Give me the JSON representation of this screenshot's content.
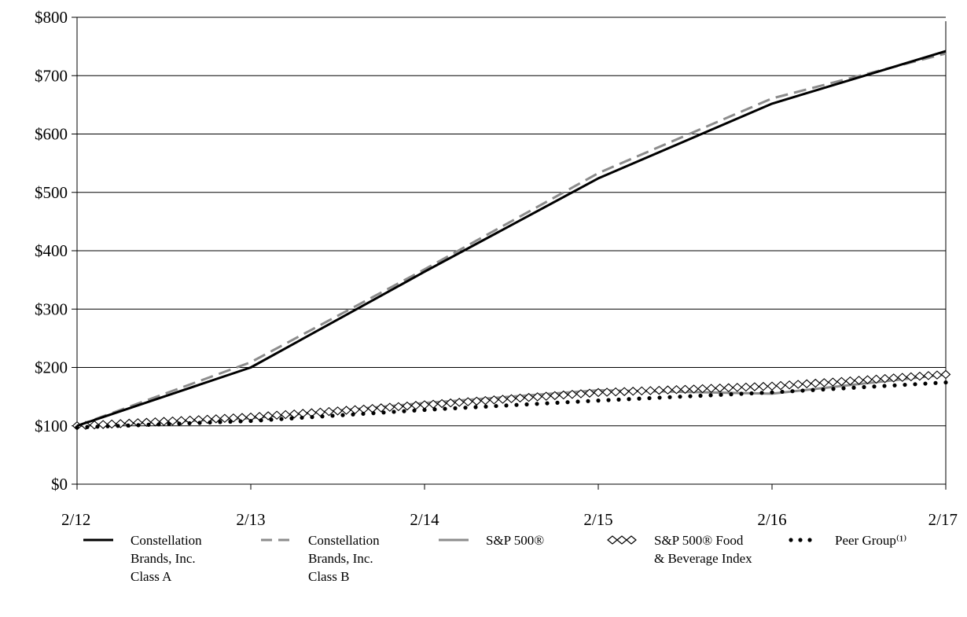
{
  "chart_data": {
    "type": "line",
    "x": [
      "2/12",
      "2/13",
      "2/14",
      "2/15",
      "2/16",
      "2/17"
    ],
    "ylim": [
      0,
      800
    ],
    "yticks": [
      "$0",
      "$100",
      "$200",
      "$300",
      "$400",
      "$500",
      "$600",
      "$700",
      "$800"
    ],
    "ytick_values": [
      0,
      100,
      200,
      300,
      400,
      500,
      600,
      700,
      800
    ],
    "grid": true,
    "legend_position": "bottom",
    "series": [
      {
        "name": "Constellation Brands, Inc. Class A",
        "label_lines": [
          "Constellation",
          "Brands, Inc.",
          "Class A"
        ],
        "style": "solid-black",
        "color": "#000000",
        "values": [
          100,
          200,
          364,
          524,
          652,
          742
        ]
      },
      {
        "name": "Constellation Brands, Inc. Class B",
        "label_lines": [
          "Constellation",
          "Brands, Inc.",
          "Class B"
        ],
        "style": "dashed-gray",
        "color": "#8c8c8c",
        "values": [
          100,
          209,
          368,
          533,
          661,
          738
        ]
      },
      {
        "name": "S&P 500®",
        "label_lines": [
          "S&P 500®"
        ],
        "style": "solid-gray",
        "color": "#8c8c8c",
        "values": [
          100,
          113,
          139,
          161,
          155,
          188
        ]
      },
      {
        "name": "S&P 500® Food & Beverage Index",
        "label_lines": [
          "S&P 500® Food",
          "& Beverage Index"
        ],
        "style": "diamonds",
        "color": "#000000",
        "values": [
          100,
          115,
          136,
          157,
          168,
          188
        ]
      },
      {
        "name": "Peer Group(1)",
        "label_lines": [
          "Peer Group⁽¹⁾"
        ],
        "style": "dotted-black",
        "color": "#000000",
        "values": [
          100,
          111,
          130,
          146,
          160,
          177
        ]
      }
    ]
  }
}
